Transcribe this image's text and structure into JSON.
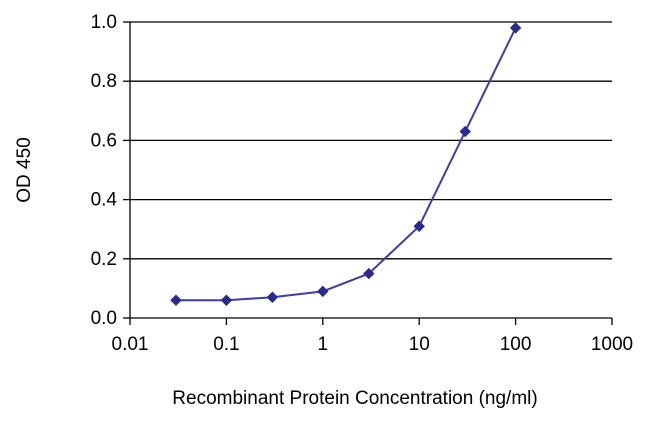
{
  "chart_data": {
    "type": "line",
    "title": "",
    "xlabel": "Recombinant Protein Concentration (ng/ml)",
    "ylabel": "OD 450",
    "x_scale": "log",
    "x": [
      0.03,
      0.1,
      0.3,
      1,
      3,
      10,
      30,
      100
    ],
    "y": [
      0.06,
      0.06,
      0.07,
      0.09,
      0.15,
      0.31,
      0.63,
      0.98
    ],
    "xlim": [
      0.01,
      1000
    ],
    "ylim": [
      0.0,
      1.0
    ],
    "x_ticks": [
      0.01,
      0.1,
      1,
      10,
      100,
      1000
    ],
    "x_tick_labels": [
      "0.01",
      "0.1",
      "1",
      "10",
      "100",
      "1000"
    ],
    "y_ticks": [
      0.0,
      0.2,
      0.4,
      0.6,
      0.8,
      1.0
    ],
    "y_tick_labels": [
      "0.0",
      "0.2",
      "0.4",
      "0.6",
      "0.8",
      "1.0"
    ],
    "grid": "horizontal",
    "legend": "none",
    "line_color": "#3c3caa",
    "marker": "diamond",
    "marker_color": "#2b2b8c",
    "grid_color": "#000000",
    "axis_color": "#000000"
  }
}
